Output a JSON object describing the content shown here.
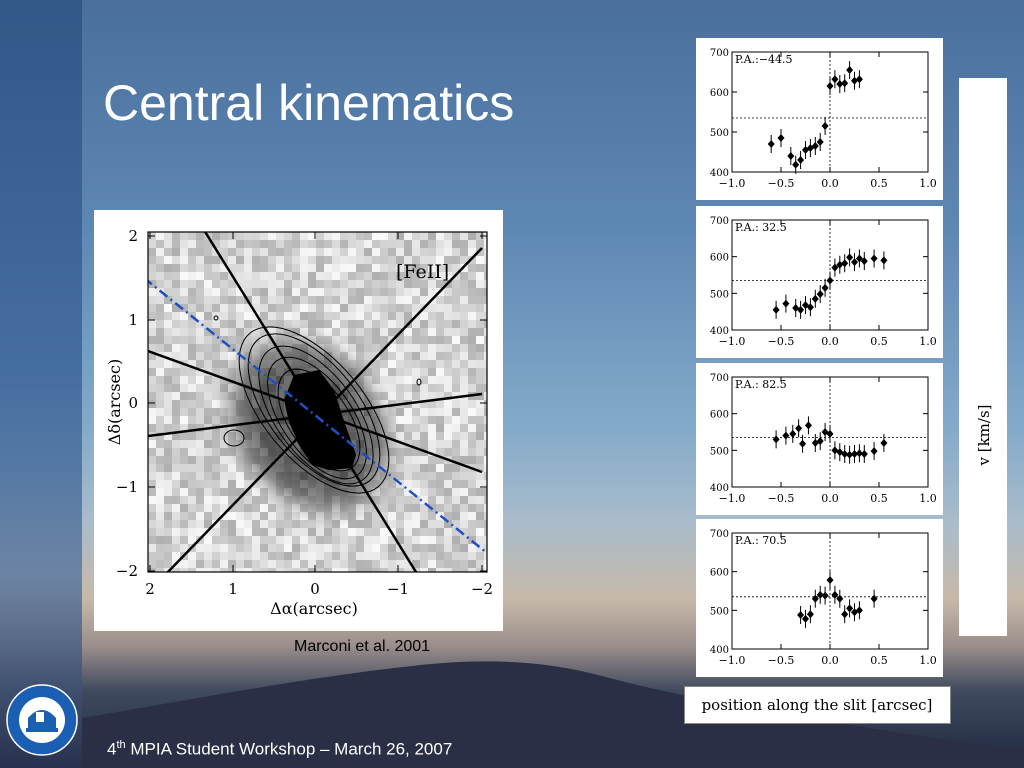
{
  "slide": {
    "title": "Central kinematics",
    "credit": "Marconi et al. 2001",
    "footer": {
      "pre": "4",
      "sup": "th",
      "post": " MPIA Student Workshop – March 26, 2007"
    }
  },
  "colors": {
    "title": "#ffffff",
    "slit_line": "#1f4fc4",
    "panel": "#ffffff"
  },
  "map": {
    "label": "[FeII]",
    "xlabel": "Δα(arcsec)",
    "ylabel": "Δδ(arcsec)",
    "xticks": [
      "2",
      "1",
      "0",
      "−1",
      "−2"
    ],
    "yticks": [
      "2",
      "1",
      "0",
      "−1",
      "−2"
    ]
  },
  "velocity_axis_label": "v [km/s]",
  "position_axis_label": "position along the slit [arcsec]",
  "chart_data": [
    {
      "type": "scatter",
      "title": "P.A.:−44.5",
      "xlim": [
        -1.0,
        1.0
      ],
      "ylim": [
        400,
        700
      ],
      "xticks": [
        "−1.0",
        "−0.5",
        "0.0",
        "0.5",
        "1.0"
      ],
      "yticks": [
        "400",
        "500",
        "600",
        "700"
      ],
      "ref_y": 535,
      "x": [
        -0.6,
        -0.5,
        -0.4,
        -0.35,
        -0.3,
        -0.25,
        -0.2,
        -0.15,
        -0.1,
        -0.05,
        0.0,
        0.05,
        0.1,
        0.15,
        0.2,
        0.25,
        0.3
      ],
      "y": [
        470,
        485,
        440,
        418,
        430,
        455,
        460,
        465,
        475,
        515,
        615,
        632,
        620,
        622,
        655,
        628,
        632
      ]
    },
    {
      "type": "scatter",
      "title": "P.A.: 32.5",
      "xlim": [
        -1.0,
        1.0
      ],
      "ylim": [
        400,
        700
      ],
      "xticks": [
        "−1.0",
        "−0.5",
        "0.0",
        "0.5",
        "1.0"
      ],
      "yticks": [
        "400",
        "500",
        "600",
        "700"
      ],
      "ref_y": 535,
      "x": [
        -0.55,
        -0.45,
        -0.35,
        -0.3,
        -0.25,
        -0.2,
        -0.15,
        -0.1,
        -0.05,
        0.0,
        0.05,
        0.1,
        0.15,
        0.2,
        0.25,
        0.3,
        0.35,
        0.45,
        0.55
      ],
      "y": [
        455,
        472,
        460,
        455,
        468,
        462,
        485,
        498,
        515,
        535,
        570,
        578,
        582,
        598,
        585,
        595,
        588,
        595,
        590
      ]
    },
    {
      "type": "scatter",
      "title": "P.A.: 82.5",
      "xlim": [
        -1.0,
        1.0
      ],
      "ylim": [
        400,
        700
      ],
      "xticks": [
        "−1.0",
        "−0.5",
        "0.0",
        "0.5",
        "1.0"
      ],
      "yticks": [
        "400",
        "500",
        "600",
        "700"
      ],
      "ref_y": 535,
      "x": [
        -0.55,
        -0.45,
        -0.38,
        -0.32,
        -0.28,
        -0.22,
        -0.15,
        -0.1,
        -0.05,
        0.0,
        0.05,
        0.1,
        0.15,
        0.2,
        0.25,
        0.3,
        0.35,
        0.45,
        0.55
      ],
      "y": [
        530,
        540,
        545,
        560,
        518,
        568,
        520,
        525,
        550,
        545,
        500,
        495,
        490,
        488,
        490,
        492,
        490,
        498,
        520
      ]
    },
    {
      "type": "scatter",
      "title": "P.A.: 70.5",
      "xlim": [
        -1.0,
        1.0
      ],
      "ylim": [
        400,
        700
      ],
      "xticks": [
        "−1.0",
        "−0.5",
        "0.0",
        "0.5",
        "1.0"
      ],
      "yticks": [
        "400",
        "500",
        "600",
        "700"
      ],
      "ref_y": 535,
      "x": [
        -0.3,
        -0.25,
        -0.2,
        -0.15,
        -0.1,
        -0.05,
        0.0,
        0.05,
        0.1,
        0.15,
        0.2,
        0.25,
        0.3,
        0.45
      ],
      "y": [
        488,
        478,
        490,
        530,
        540,
        538,
        578,
        540,
        530,
        490,
        505,
        495,
        500,
        530
      ]
    }
  ]
}
